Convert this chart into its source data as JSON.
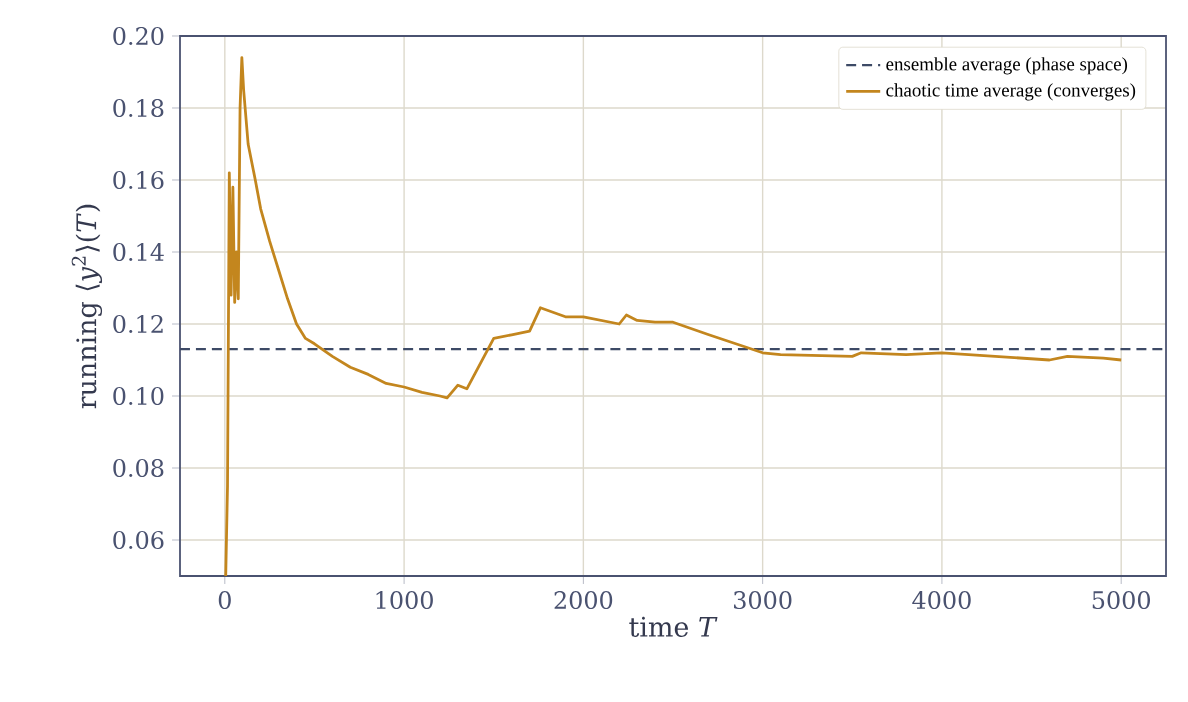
{
  "chart_data": {
    "type": "line",
    "xlabel": "time *T*",
    "ylabel": "running ⟨*y*$^{2}$⟩(*T*)",
    "xlim": [
      -250,
      5250
    ],
    "ylim": [
      0.05,
      0.2
    ],
    "xticks": [
      0,
      1000,
      2000,
      3000,
      4000,
      5000
    ],
    "yticks": [
      0.06,
      0.08,
      {
        "value": 0.1,
        "label": "0.10"
      },
      0.12,
      0.14,
      0.16,
      0.18,
      {
        "value": 0.2,
        "label": "0.20"
      }
    ],
    "grid": true,
    "legend": "top right",
    "ref_lines": [
      {
        "axis": "y",
        "value": 0.113,
        "label": "ensemble average (phase space)",
        "color": "#3d4a66",
        "line_style": "dashed"
      }
    ],
    "series": [
      {
        "name": "chaotic time average (converges)",
        "color": "#c3861e",
        "line_style": "solid",
        "x": [
          5,
          15,
          25,
          35,
          45,
          55,
          65,
          75,
          85,
          95,
          105,
          130,
          170,
          200,
          250,
          300,
          350,
          400,
          450,
          500,
          600,
          700,
          800,
          900,
          1000,
          1100,
          1200,
          1240,
          1300,
          1350,
          1500,
          1600,
          1700,
          1760,
          1900,
          2000,
          2100,
          2200,
          2240,
          2300,
          2400,
          2500,
          2700,
          3000,
          3100,
          3500,
          3550,
          3800,
          4000,
          4300,
          4600,
          4700,
          4900,
          5000
        ],
        "values": [
          0.05,
          0.075,
          0.162,
          0.128,
          0.158,
          0.126,
          0.14,
          0.127,
          0.18,
          0.194,
          0.185,
          0.17,
          0.16,
          0.152,
          0.143,
          0.135,
          0.127,
          0.12,
          0.116,
          0.1145,
          0.111,
          0.108,
          0.106,
          0.1035,
          0.1025,
          0.101,
          0.1,
          0.0995,
          0.103,
          0.102,
          0.116,
          0.117,
          0.118,
          0.1245,
          0.122,
          0.122,
          0.121,
          0.12,
          0.1225,
          0.121,
          0.1205,
          0.1205,
          0.117,
          0.112,
          0.1115,
          0.111,
          0.112,
          0.1115,
          0.112,
          0.111,
          0.11,
          0.111,
          0.1105,
          0.11
        ]
      }
    ]
  }
}
